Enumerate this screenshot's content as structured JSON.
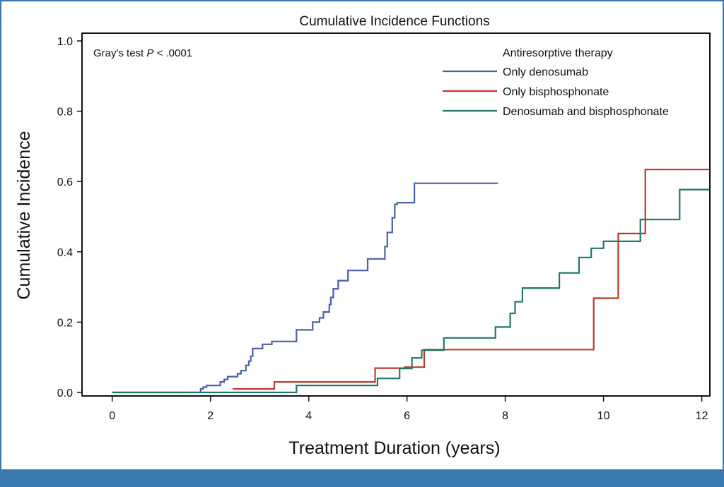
{
  "chart_data": {
    "type": "line",
    "step": true,
    "title": "Cumulative Incidence Functions",
    "xlabel": "Treatment Duration (years)",
    "ylabel": "Cumulative Incidence",
    "xlim": [
      -0.6,
      12.15
    ],
    "ylim": [
      -0.008,
      1.02
    ],
    "xticks": [
      0,
      2,
      4,
      6,
      8,
      10,
      12
    ],
    "xtick_labels": [
      "0",
      "2",
      "4",
      "6",
      "8",
      "10",
      "12"
    ],
    "yticks": [
      0.0,
      0.2,
      0.4,
      0.6,
      0.8,
      1.0
    ],
    "ytick_labels": [
      "0.0",
      "0.2",
      "0.4",
      "0.6",
      "0.8",
      "1.0"
    ],
    "grid": false,
    "annotation": {
      "prefix": "Gray's test ",
      "italic": "P",
      "suffix": " < .0001"
    },
    "legend_title": "Antiresorptive therapy",
    "legend_position": "top-right",
    "series": [
      {
        "name": "Only denosumab",
        "color": "#4a5fb0",
        "x": [
          0,
          1.8,
          1.85,
          1.92,
          2.2,
          2.28,
          2.35,
          2.55,
          2.62,
          2.72,
          2.78,
          2.82,
          2.86,
          3.06,
          3.25,
          3.75,
          4.08,
          4.22,
          4.3,
          4.42,
          4.45,
          4.5,
          4.6,
          4.8,
          5.2,
          5.55,
          5.6,
          5.7,
          5.75,
          5.8,
          6.15,
          7.85
        ],
        "y": [
          0,
          0.01,
          0.015,
          0.02,
          0.03,
          0.037,
          0.045,
          0.053,
          0.062,
          0.077,
          0.089,
          0.103,
          0.125,
          0.137,
          0.145,
          0.178,
          0.2,
          0.212,
          0.229,
          0.25,
          0.27,
          0.295,
          0.318,
          0.347,
          0.38,
          0.415,
          0.455,
          0.497,
          0.535,
          0.54,
          0.595,
          0.595
        ]
      },
      {
        "name": "Only bisphosphonate",
        "color": "#c0392b",
        "x": [
          2.45,
          3.3,
          5.35,
          5.95,
          6.35,
          9.8,
          10.3,
          10.85,
          12.15
        ],
        "y": [
          0.01,
          0.03,
          0.069,
          0.072,
          0.122,
          0.268,
          0.452,
          0.634,
          0.634
        ]
      },
      {
        "name": "Denosumab and bisphosphonate",
        "color": "#1e7a6a",
        "x": [
          0,
          3.75,
          5.4,
          5.85,
          6.1,
          6.3,
          6.75,
          7.8,
          8.1,
          8.2,
          8.35,
          9.1,
          9.5,
          9.75,
          10.0,
          10.75,
          11.55,
          12.15
        ],
        "y": [
          0,
          0.02,
          0.04,
          0.068,
          0.098,
          0.12,
          0.155,
          0.186,
          0.225,
          0.258,
          0.297,
          0.34,
          0.384,
          0.41,
          0.43,
          0.492,
          0.577,
          0.577
        ]
      }
    ]
  }
}
